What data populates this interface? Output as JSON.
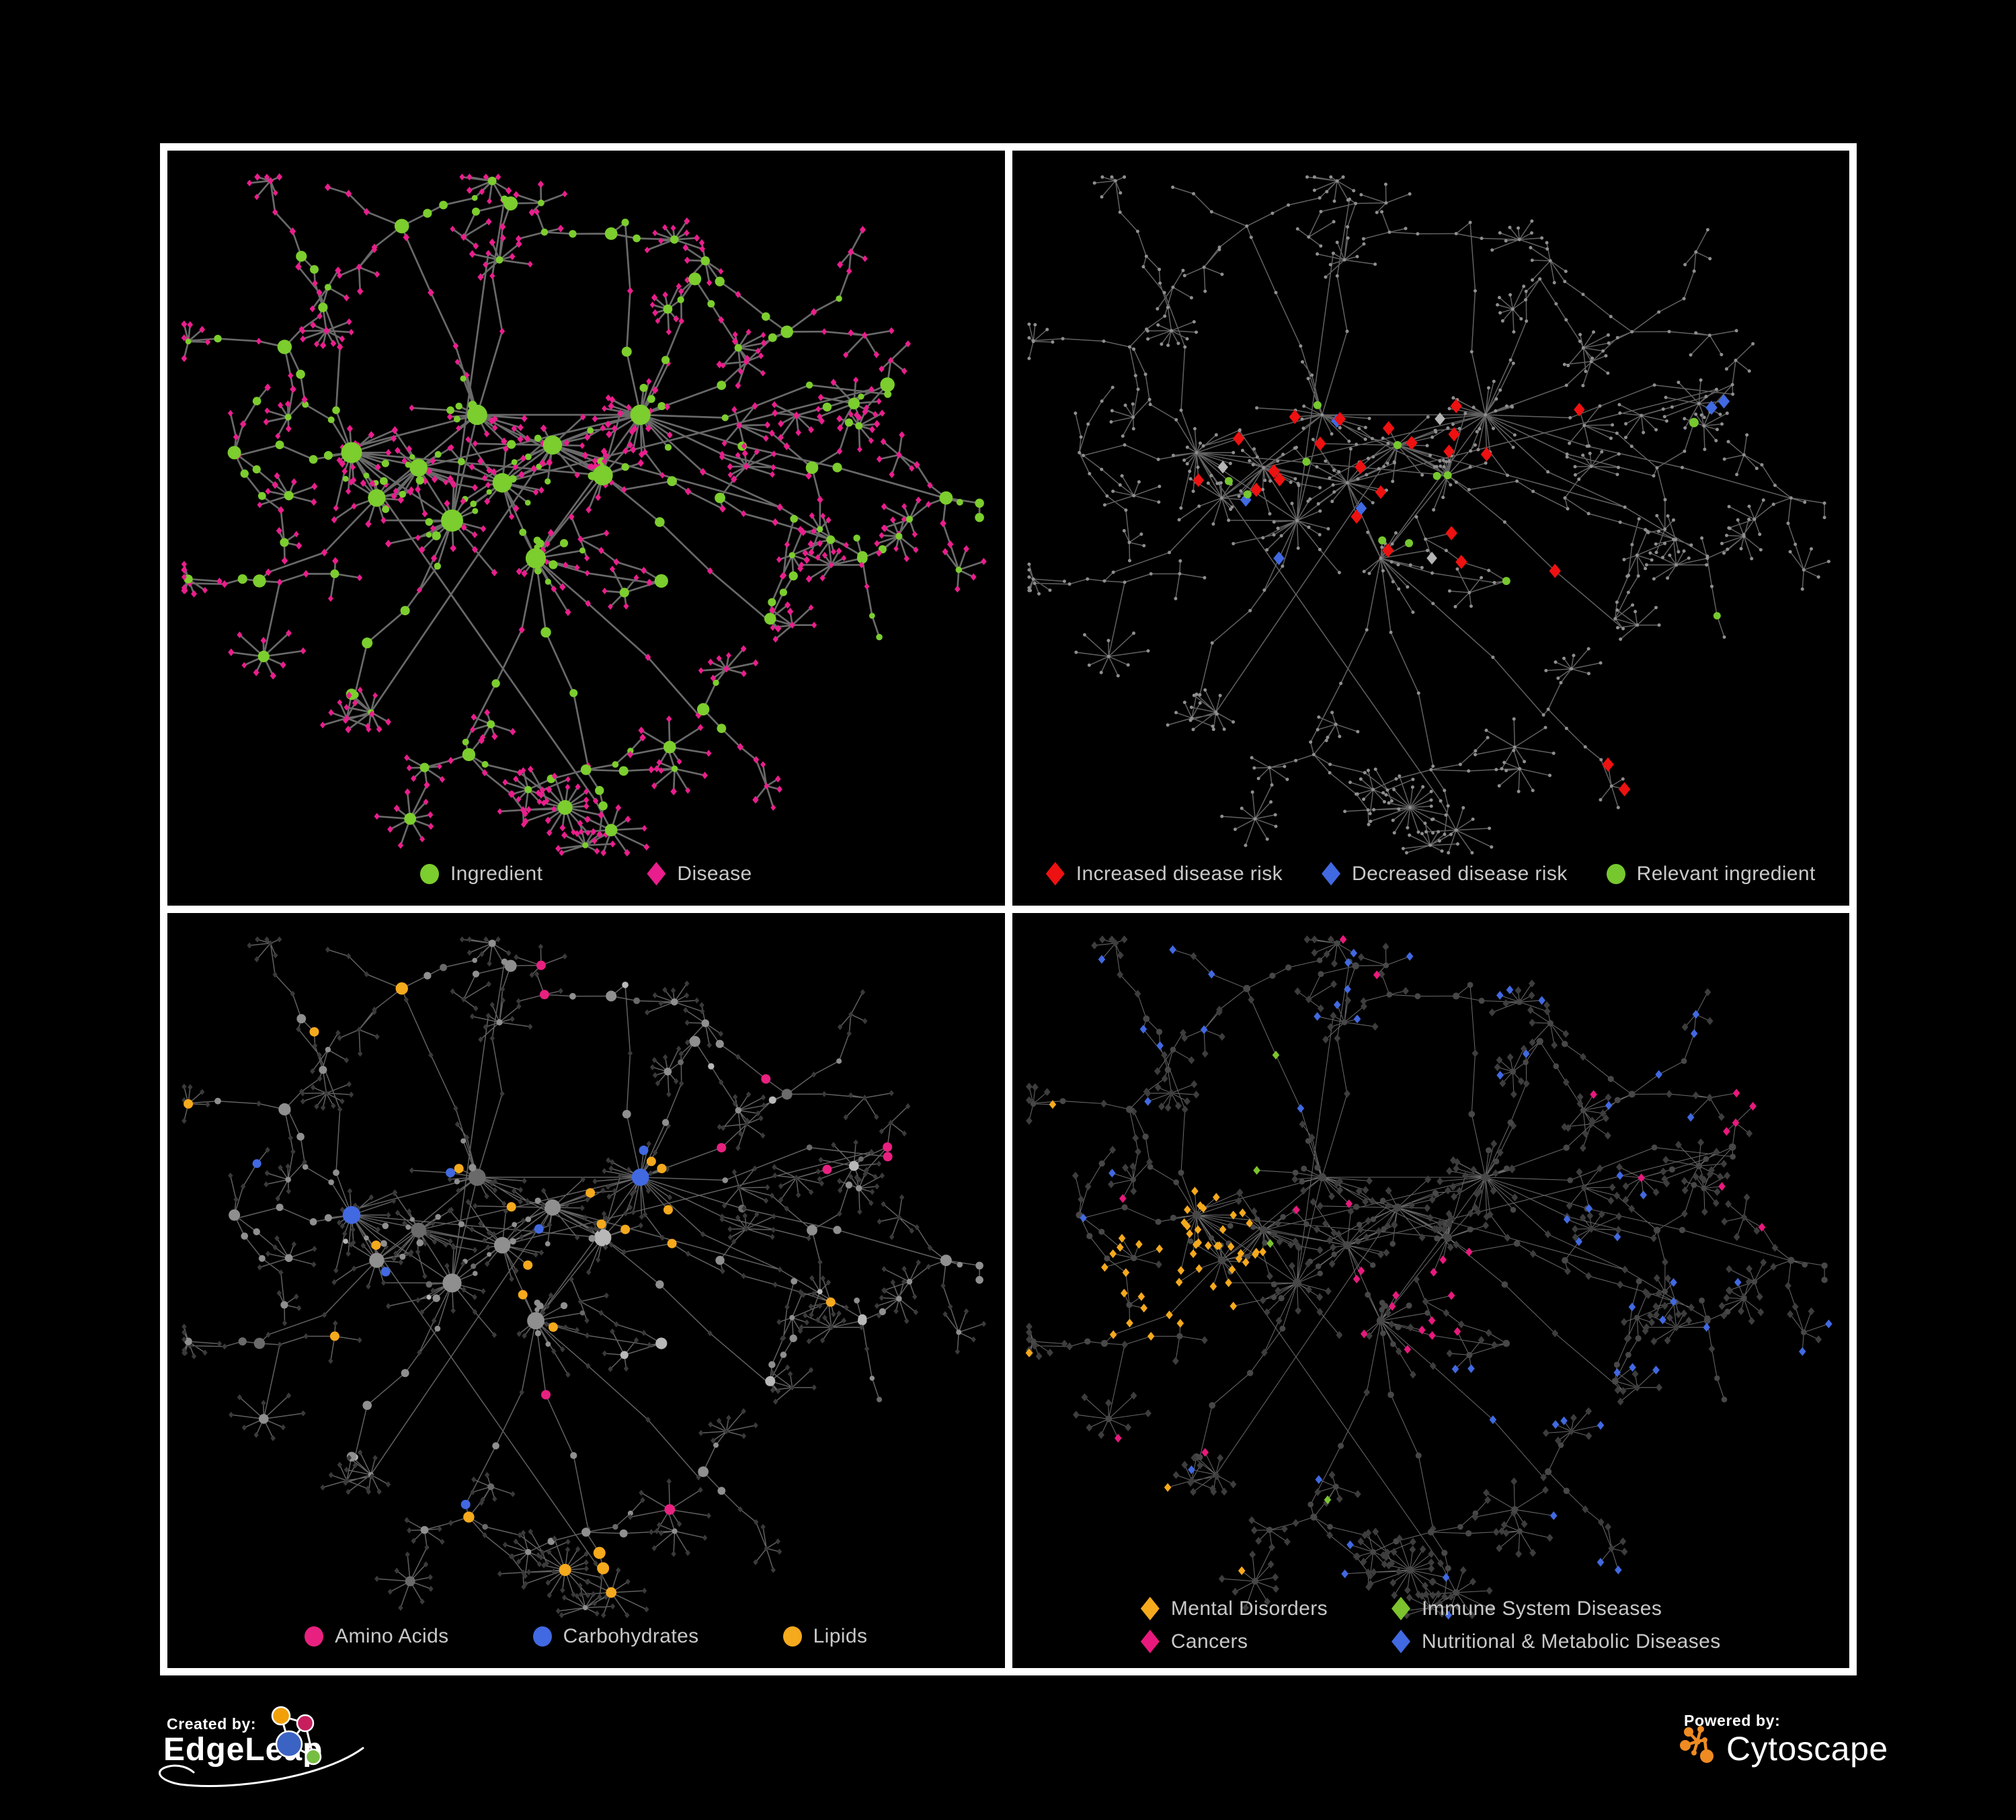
{
  "page": {
    "background": "#000000",
    "frame_color": "#ffffff",
    "legend_text_color": "#c9c9c9"
  },
  "panels": [
    {
      "name": "ingredient-disease-network",
      "legend": [
        {
          "label": "Ingredient",
          "shape": "circle",
          "color": "#7ccd2e"
        },
        {
          "label": "Disease",
          "shape": "diamond",
          "color": "#e91e8c"
        }
      ],
      "style": {
        "edge_color": "#6f6f6f",
        "edge_width": 2.7,
        "legend_gap": 155,
        "columns": 1
      }
    },
    {
      "name": "disease-risk-network",
      "legend": [
        {
          "label": "Increased disease risk",
          "shape": "diamond",
          "color": "#ee1111"
        },
        {
          "label": "Decreased disease risk",
          "shape": "diamond",
          "color": "#4169e1"
        },
        {
          "label": "Relevant ingredient",
          "shape": "circle",
          "color": "#76c82e"
        }
      ],
      "style": {
        "edge_color": "#6e6e6e",
        "edge_width": 1.5,
        "base_node": "#8f8f8f",
        "muted_diamond": "#b5b5b5",
        "legend_gap": 58,
        "columns": 1
      }
    },
    {
      "name": "nutrient-class-network",
      "legend": [
        {
          "label": "Amino Acids",
          "shape": "circle",
          "color": "#e82180"
        },
        {
          "label": "Carbohydrates",
          "shape": "circle",
          "color": "#4169e1"
        },
        {
          "label": "Lipids",
          "shape": "circle",
          "color": "#f5a91d"
        }
      ],
      "style": {
        "edge_color": "#6e6e6e",
        "edge_width": 1.5,
        "base_circle": "#8f8f8f",
        "base_diamond": "#3a3a3a",
        "legend_gap": 125,
        "columns": 1
      }
    },
    {
      "name": "disease-category-network",
      "legend": [
        {
          "label": "Mental Disorders",
          "shape": "diamond",
          "color": "#f5a91d"
        },
        {
          "label": "Immune System Diseases",
          "shape": "diamond",
          "color": "#7cc32e"
        },
        {
          "label": "Cancers",
          "shape": "diamond",
          "color": "#e8197d"
        },
        {
          "label": "Nutritional & Metabolic Diseases",
          "shape": "diamond",
          "color": "#4169e1"
        }
      ],
      "style": {
        "edge_color": "#757575",
        "edge_width": 1.05,
        "base_circle": "#474747",
        "base_diamond": "#3d3d3d",
        "legend_gap": 95,
        "columns": 2
      }
    }
  ],
  "footer": {
    "created_by": {
      "label": "Created by:",
      "brand": "EdgeLeap"
    },
    "powered_by": {
      "label": "Powered by:",
      "brand": "Cytoscape"
    },
    "edgeleap_colors": {
      "blue": "#3b63c4",
      "orange": "#f2a007",
      "pink": "#c81e5e",
      "green": "#76be43"
    },
    "cytoscape_orange": "#ef8b22"
  }
}
